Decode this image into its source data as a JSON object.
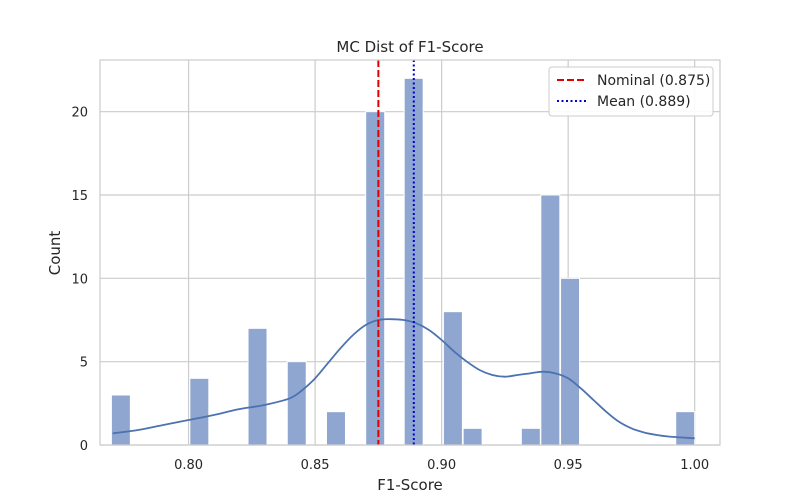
{
  "chart_data": {
    "type": "bar",
    "title": "MC Dist of F1-Score",
    "xlabel": "F1-Score",
    "ylabel": "Count",
    "xlim": [
      0.765,
      1.01
    ],
    "ylim": [
      0,
      23.1
    ],
    "xticks": [
      0.8,
      0.85,
      0.9,
      0.95,
      1.0
    ],
    "xtick_labels": [
      "0.80",
      "0.85",
      "0.90",
      "0.95",
      "1.00"
    ],
    "yticks": [
      0,
      5,
      10,
      15,
      20
    ],
    "ytick_labels": [
      "0",
      "5",
      "10",
      "15",
      "20"
    ],
    "grid": true,
    "legend_position": "top-right",
    "bar_color": "#8fa6d1",
    "kde_color": "#4c72b0",
    "bars": [
      {
        "x0": 0.7695,
        "x1": 0.777,
        "value": 3
      },
      {
        "x0": 0.8005,
        "x1": 0.808,
        "value": 4
      },
      {
        "x0": 0.8235,
        "x1": 0.831,
        "value": 7
      },
      {
        "x0": 0.839,
        "x1": 0.8465,
        "value": 5
      },
      {
        "x0": 0.8545,
        "x1": 0.862,
        "value": 2
      },
      {
        "x0": 0.87,
        "x1": 0.8775,
        "value": 20
      },
      {
        "x0": 0.8852,
        "x1": 0.8927,
        "value": 22
      },
      {
        "x0": 0.9007,
        "x1": 0.9082,
        "value": 8
      },
      {
        "x0": 0.9085,
        "x1": 0.916,
        "value": 1
      },
      {
        "x0": 0.9315,
        "x1": 0.939,
        "value": 1
      },
      {
        "x0": 0.9392,
        "x1": 0.9467,
        "value": 15
      },
      {
        "x0": 0.947,
        "x1": 0.9545,
        "value": 10
      },
      {
        "x0": 0.9925,
        "x1": 1.0,
        "value": 2
      }
    ],
    "kde": {
      "x": [
        0.77,
        0.78,
        0.79,
        0.8,
        0.81,
        0.82,
        0.83,
        0.84,
        0.845,
        0.85,
        0.855,
        0.86,
        0.865,
        0.87,
        0.875,
        0.88,
        0.885,
        0.89,
        0.895,
        0.9,
        0.905,
        0.91,
        0.915,
        0.92,
        0.925,
        0.93,
        0.935,
        0.94,
        0.945,
        0.95,
        0.955,
        0.96,
        0.965,
        0.97,
        0.975,
        0.98,
        0.985,
        0.99,
        0.995,
        1.0
      ],
      "y": [
        0.7,
        0.9,
        1.2,
        1.5,
        1.8,
        2.15,
        2.4,
        2.8,
        3.3,
        4.0,
        4.9,
        5.8,
        6.6,
        7.2,
        7.5,
        7.55,
        7.5,
        7.3,
        6.9,
        6.3,
        5.6,
        5.0,
        4.5,
        4.2,
        4.1,
        4.2,
        4.3,
        4.4,
        4.3,
        4.0,
        3.4,
        2.7,
        2.0,
        1.4,
        1.0,
        0.75,
        0.6,
        0.5,
        0.45,
        0.4
      ]
    },
    "vlines": [
      {
        "name": "Nominal (0.875)",
        "x": 0.875,
        "color": "#e00000",
        "style": "dashed"
      },
      {
        "name": "Mean (0.889)",
        "x": 0.889,
        "color": "#0000d0",
        "style": "dotted"
      }
    ]
  }
}
